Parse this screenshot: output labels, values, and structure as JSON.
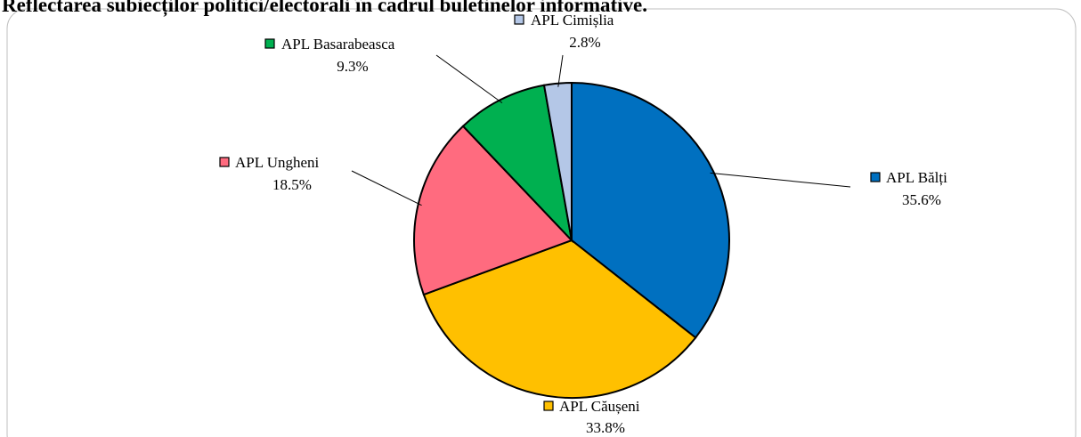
{
  "chart_data": {
    "type": "pie",
    "title": "Reflectarea subiecților politici/electorali în cadrul buletinelor informative.",
    "categories": [
      "APL Bălți",
      "APL Căușeni",
      "APL Ungheni",
      "APL Basarabeasca",
      "APL Cimișlia"
    ],
    "values": [
      35.6,
      33.8,
      18.5,
      9.3,
      2.8
    ],
    "value_labels": [
      "35.6%",
      "33.8%",
      "18.5%",
      "9.3%",
      "2.8%"
    ],
    "colors": [
      "#0070c0",
      "#ffc000",
      "#ff6b7f",
      "#00b050",
      "#b4c7e7"
    ]
  }
}
